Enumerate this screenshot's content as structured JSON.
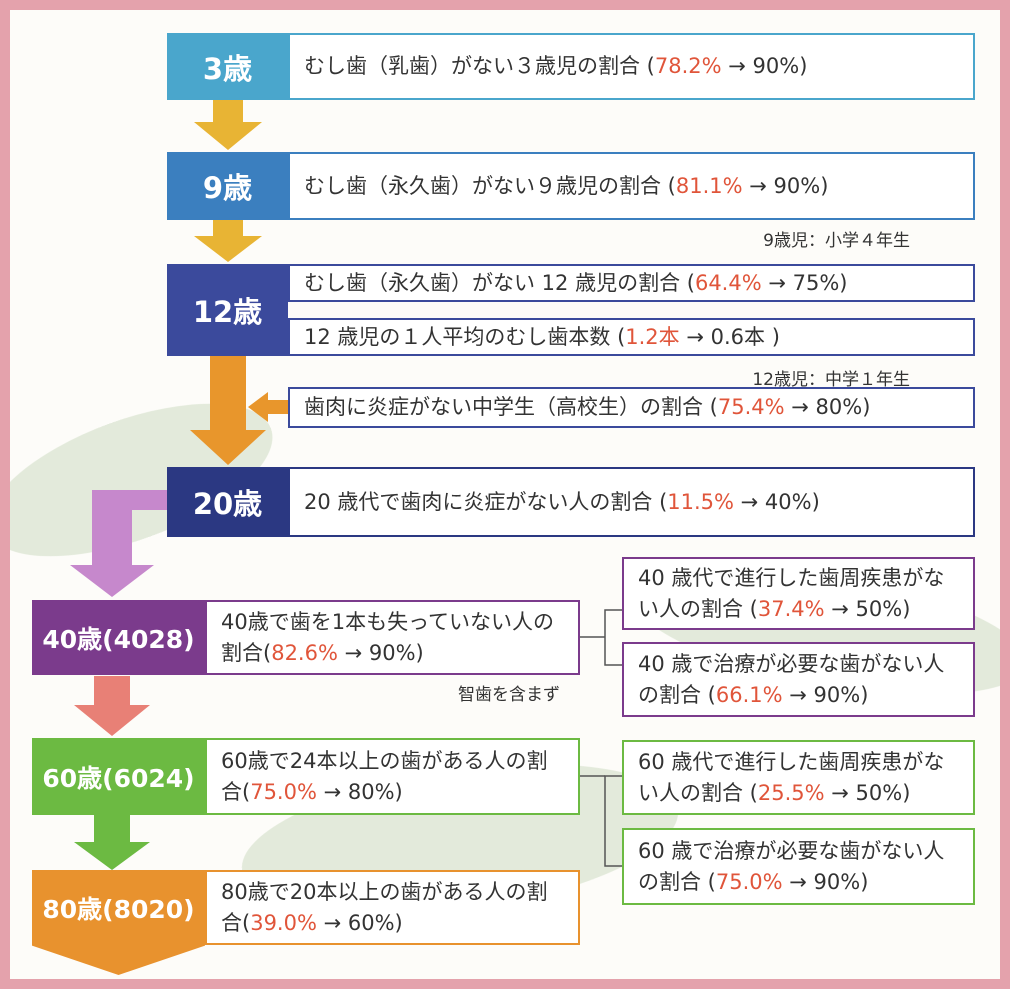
{
  "stages": [
    {
      "label": "3歳",
      "items": [
        {
          "before": "むし歯（乳歯）がない３歳児の割合 (",
          "current": "78.2%",
          "after": " → 90%)"
        }
      ]
    },
    {
      "label": "9歳",
      "items": [
        {
          "before": "むし歯（永久歯）がない９歳児の割合 (",
          "current": "81.1%",
          "after": " → 90%)"
        }
      ],
      "note": "9歳児：小学４年生"
    },
    {
      "label": "12歳",
      "items": [
        {
          "before": "むし歯（永久歯）がない 12 歳児の割合 (",
          "current": "64.4%",
          "after": " → 75%)"
        },
        {
          "before": "12 歳児の１人平均のむし歯本数 (",
          "current": "1.2本",
          "after": " → 0.6本 )"
        },
        {
          "before": "歯肉に炎症がない中学生（高校生）の割合 (",
          "current": "75.4%",
          "after": " → 80%)"
        }
      ],
      "note": "12歳児：中学１年生"
    },
    {
      "label": "20歳",
      "items": [
        {
          "before": "20 歳代で歯肉に炎症がない人の割合 (",
          "current": "11.5%",
          "after": " → 40%)"
        }
      ]
    },
    {
      "label": "40歳(4028)",
      "items": [
        {
          "before": "40歳で歯を1本も失っていない人の割合(",
          "current": "82.6%",
          "after": " → 90%)"
        }
      ],
      "note": "智歯を含まず",
      "side": [
        {
          "before": "40 歳代で進行した歯周疾患がない人の割合 (",
          "current": "37.4%",
          "after": " → 50%)"
        },
        {
          "before": "40 歳で治療が必要な歯がない人の割合 (",
          "current": "66.1%",
          "after": " → 90%)"
        }
      ]
    },
    {
      "label": "60歳(6024)",
      "items": [
        {
          "before": "60歳で24本以上の歯がある人の割合(",
          "current": "75.0%",
          "after": " → 80%)"
        }
      ],
      "side": [
        {
          "before": "60 歳代で進行した歯周疾患がない人の割合 (",
          "current": "25.5%",
          "after": " → 50%)"
        },
        {
          "before": "60 歳で治療が必要な歯がない人の割合 (",
          "current": "75.0%",
          "after": " → 90%)"
        }
      ]
    },
    {
      "label": "80歳(8020)",
      "items": [
        {
          "before": "80歳で20本以上の歯がある人の割合(",
          "current": "39.0%",
          "after": " → 60%)"
        }
      ]
    }
  ]
}
